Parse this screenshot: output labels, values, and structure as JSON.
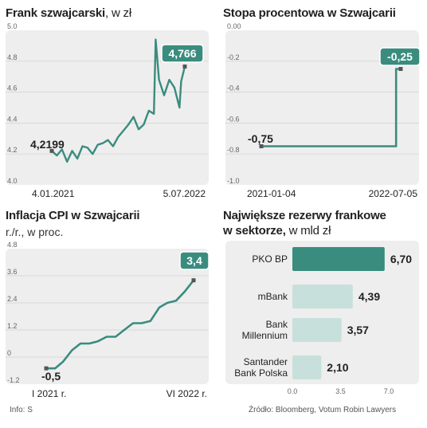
{
  "colors": {
    "accent": "#3a8c7e",
    "panel_bg": "#eeeeee",
    "bar_light": "#c8e0dc",
    "bar_dark": "#3a8c7e",
    "point": "#555555"
  },
  "chart_data": [
    {
      "type": "line",
      "title": "Frank szwajcarski",
      "unit": ", w zł",
      "ylim": [
        4.0,
        5.0
      ],
      "yticks": [
        "4.0",
        "4.2",
        "4.4",
        "4.6",
        "4.8",
        "5.0"
      ],
      "x_range": [
        "2021-01-04",
        "2022-07-05"
      ],
      "xtick_labels": [
        "4.01.2021",
        "5.07.2022"
      ],
      "start_label": "4,2199",
      "end_label": "4,766",
      "x": [
        "2021-01-04",
        "2021-01-25",
        "2021-02-15",
        "2021-03-08",
        "2021-03-29",
        "2021-04-19",
        "2021-05-10",
        "2021-05-31",
        "2021-06-21",
        "2021-07-12",
        "2021-08-02",
        "2021-08-23",
        "2021-09-13",
        "2021-10-04",
        "2021-10-25",
        "2021-11-15",
        "2021-12-06",
        "2021-12-27",
        "2022-01-17",
        "2022-02-07",
        "2022-02-28",
        "2022-03-07",
        "2022-03-21",
        "2022-04-11",
        "2022-05-02",
        "2022-05-23",
        "2022-06-13",
        "2022-06-20",
        "2022-07-05"
      ],
      "values": [
        4.2199,
        4.19,
        4.23,
        4.15,
        4.22,
        4.17,
        4.25,
        4.24,
        4.2,
        4.26,
        4.27,
        4.29,
        4.25,
        4.31,
        4.35,
        4.39,
        4.44,
        4.36,
        4.39,
        4.48,
        4.46,
        4.94,
        4.68,
        4.58,
        4.68,
        4.63,
        4.5,
        4.67,
        4.766
      ]
    },
    {
      "type": "line",
      "title": "Stopa procentowa w Szwajcarii",
      "ylim": [
        -1.0,
        0.0
      ],
      "yticks": [
        "0.00",
        "-0.2",
        "-0.4",
        "-0.6",
        "-0.8",
        "-1.0"
      ],
      "x_range": [
        "2021-01-04",
        "2022-07-05"
      ],
      "xtick_labels": [
        "2021-01-04",
        "2022-07-05"
      ],
      "start_label": "-0,75",
      "end_label": "-0,25",
      "x": [
        "2021-01-04",
        "2022-06-17",
        "2022-06-17",
        "2022-07-05"
      ],
      "values": [
        -0.75,
        -0.75,
        -0.25,
        -0.25
      ]
    },
    {
      "type": "line",
      "title": "Inflacja CPI w Szwajcarii",
      "subtitle": "r./r., w proc.",
      "ylim": [
        -1.2,
        4.8
      ],
      "yticks": [
        "4.8",
        "3.6",
        "2.4",
        "1.2",
        "0",
        "-1.2"
      ],
      "x_range": [
        "2021-01",
        "2022-06"
      ],
      "xtick_labels": [
        "I 2021 r.",
        "VI 2022 r."
      ],
      "start_label": "-0,5",
      "end_label": "3,4",
      "x": [
        "2021-01",
        "2021-02",
        "2021-03",
        "2021-04",
        "2021-05",
        "2021-06",
        "2021-07",
        "2021-08",
        "2021-09",
        "2021-10",
        "2021-11",
        "2021-12",
        "2022-01",
        "2022-02",
        "2022-03",
        "2022-04",
        "2022-05",
        "2022-06"
      ],
      "values": [
        -0.5,
        -0.5,
        -0.2,
        0.3,
        0.6,
        0.6,
        0.7,
        0.9,
        0.9,
        1.2,
        1.5,
        1.5,
        1.6,
        2.2,
        2.4,
        2.5,
        2.9,
        3.4
      ]
    },
    {
      "type": "bar",
      "title": "Największe rezerwy frankowe",
      "title_line2": "w sektorze,",
      "unit": " w mld zł",
      "categories": [
        "PKO BP",
        "mBank",
        "Bank Millennium",
        "Santander Bank Polska"
      ],
      "category_lines": [
        [
          "PKO BP"
        ],
        [
          "mBank"
        ],
        [
          "Bank",
          "Millennium"
        ],
        [
          "Santander",
          "Bank Polska"
        ]
      ],
      "values": [
        6.7,
        4.39,
        3.57,
        2.1
      ],
      "value_labels": [
        "6,70",
        "4,39",
        "3,57",
        "2,10"
      ],
      "xlim": [
        0,
        7.0
      ],
      "xticks": [
        "0.0",
        "3.5",
        "7.0"
      ]
    }
  ],
  "footer": {
    "info": "Info: S",
    "source": "Źródło: Bloomberg, Votum Robin Lawyers"
  }
}
